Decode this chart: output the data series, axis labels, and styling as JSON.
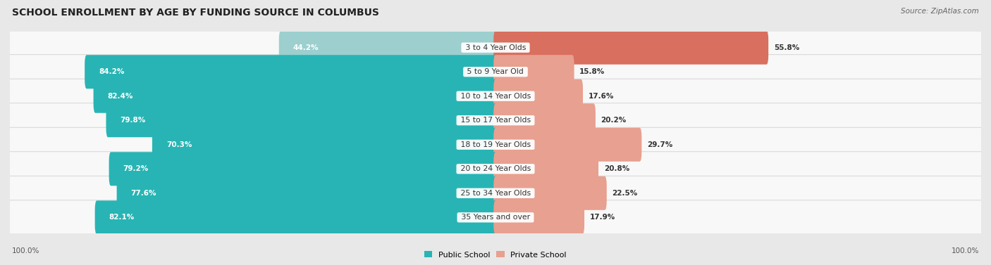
{
  "title": "SCHOOL ENROLLMENT BY AGE BY FUNDING SOURCE IN COLUMBUS",
  "source": "Source: ZipAtlas.com",
  "categories": [
    "3 to 4 Year Olds",
    "5 to 9 Year Old",
    "10 to 14 Year Olds",
    "15 to 17 Year Olds",
    "18 to 19 Year Olds",
    "20 to 24 Year Olds",
    "25 to 34 Year Olds",
    "35 Years and over"
  ],
  "public_values": [
    44.2,
    84.2,
    82.4,
    79.8,
    70.3,
    79.2,
    77.6,
    82.1
  ],
  "private_values": [
    55.8,
    15.8,
    17.6,
    20.2,
    29.7,
    20.8,
    22.5,
    17.9
  ],
  "public_color_row0": "#9dcfcf",
  "public_color_dark": "#28b4b4",
  "private_color_row0": "#d96f5e",
  "private_color_light": "#e8a090",
  "bg_color": "#e8e8e8",
  "row_bg_even": "#f5f5f5",
  "row_bg_odd": "#ebebeb",
  "legend_public": "Public School",
  "legend_private": "Private School",
  "axis_label_left": "100.0%",
  "axis_label_right": "100.0%",
  "title_fontsize": 10,
  "label_fontsize": 7.5,
  "category_fontsize": 7.8,
  "source_fontsize": 7.5
}
